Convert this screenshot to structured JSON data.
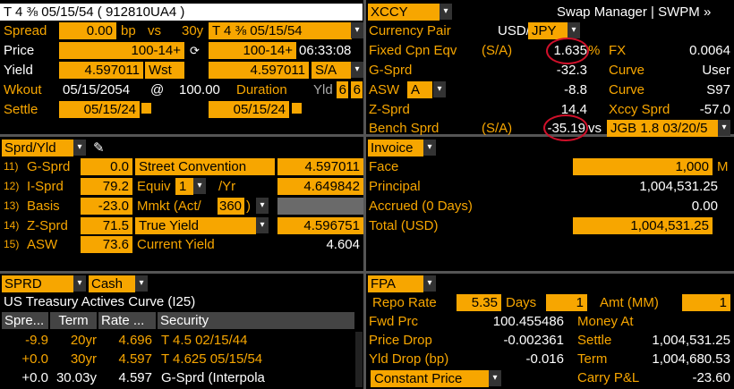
{
  "left_top": {
    "security_title": "T 4 ⅜ 05/15/54 ( 912810UA4 )",
    "spread_label": "Spread",
    "spread_value": "0.00",
    "spread_unit": "bp",
    "vs_label": "vs",
    "bench_tenor": "30y",
    "bench_security": "T 4 ⅜ 05/15/54",
    "price_label": "Price",
    "price_value": "100-14+",
    "price_value2": "100-14+",
    "price_time": "06:33:08",
    "yield_label": "Yield",
    "yield_value": "4.597011",
    "yield_type": "Wst",
    "yield_value2": "4.597011",
    "yield_freq": "S/A",
    "wkout_label": "Wkout",
    "wkout_date": "05/15/2054",
    "wkout_at": "@",
    "wkout_price": "100.00",
    "duration_label": "Duration",
    "yld_label": "Yld",
    "dur_a": "6",
    "dur_b": "6",
    "settle_label": "Settle",
    "settle_date": "05/15/24",
    "settle_date2": "05/15/24"
  },
  "right_top": {
    "xccy_label": "XCCY",
    "title": "Swap Manager | SWPM »",
    "pair_label": "Currency Pair",
    "pair_base": "USD/",
    "pair_quote": "JPY",
    "rows": [
      {
        "label": "Fixed Cpn Eqv",
        "freq": "(S/A)",
        "value": "1.635",
        "suffix": "%",
        "label2": "FX",
        "value2": "0.0064"
      },
      {
        "label": "G-Sprd",
        "freq": "",
        "value": "-32.3",
        "suffix": "",
        "label2": "Curve",
        "value2": "User"
      },
      {
        "label": "ASW",
        "freq": "",
        "value": "-8.8",
        "suffix": "",
        "label2": "Curve",
        "value2": "S97"
      },
      {
        "label": "Z-Sprd",
        "freq": "",
        "value": "14.4",
        "suffix": "",
        "label2": "Xccy Sprd",
        "value2": "-57.0"
      }
    ],
    "asw_select": "A",
    "bench_label": "Bench Sprd",
    "bench_freq": "(S/A)",
    "bench_value": "-35.19",
    "bench_vs": "vs",
    "bench_security": "JGB 1.8 03/20/5"
  },
  "sprd_yld": {
    "title": "Sprd/Yld",
    "rows": [
      {
        "num": "11)",
        "label": "G-Sprd",
        "value": "0.0"
      },
      {
        "num": "12)",
        "label": "I-Sprd",
        "value": "79.2"
      },
      {
        "num": "13)",
        "label": "Basis",
        "value": "-23.0"
      },
      {
        "num": "14)",
        "label": "Z-Sprd",
        "value": "71.5"
      },
      {
        "num": "15)",
        "label": "ASW",
        "value": "73.6"
      }
    ],
    "street_label": "Street Convention",
    "street_value": "4.597011",
    "equiv_label": "Equiv",
    "equiv_sel": "1",
    "equiv_unit": "/Yr",
    "equiv_value": "4.649842",
    "mmkt_label": "Mmkt (Act/",
    "mmkt_sel": "360",
    "mmkt_close": ")",
    "true_label": "True Yield",
    "true_value": "4.596751",
    "current_label": "Current Yield",
    "current_value": "4.604"
  },
  "invoice": {
    "title": "Invoice",
    "face_label": "Face",
    "face_value": "1,000",
    "face_unit": "M",
    "principal_label": "Principal",
    "principal_value": "1,004,531.25",
    "accrued_label": "Accrued (0 Days)",
    "accrued_value": "0.00",
    "total_label": "Total (USD)",
    "total_value": "1,004,531.25"
  },
  "curve": {
    "tab1": "SPRD",
    "tab2": "Cash",
    "title": "US Treasury Actives Curve (I25)",
    "headers": [
      "Spre...",
      "Term",
      "Rate ...",
      "Security"
    ],
    "rows": [
      {
        "spread": "-9.9",
        "term": "20yr",
        "rate": "4.696",
        "security": "T 4.5 02/15/44"
      },
      {
        "spread": "+0.0",
        "term": "30yr",
        "rate": "4.597",
        "security": "T 4.625 05/15/54"
      },
      {
        "spread": "+0.0",
        "term": "30.03y",
        "rate": "4.597",
        "security": "G-Sprd (Interpola"
      }
    ]
  },
  "fpa": {
    "title": "FPA",
    "repo_label": "Repo Rate",
    "repo_value": "5.35",
    "days_label": "Days",
    "days_value": "1",
    "amt_label": "Amt (MM)",
    "amt_value": "1",
    "fwd_label": "Fwd Prc",
    "fwd_value": "100.455486",
    "money_label": "Money At",
    "pdrop_label": "Price Drop",
    "pdrop_value": "-0.002361",
    "settle_label": "Settle",
    "settle_value": "1,004,531.25",
    "ydrop_label": "Yld Drop (bp)",
    "ydrop_value": "-0.016",
    "term_label": "Term",
    "term_value": "1,004,680.53",
    "const_label": "Constant Price",
    "carry_label": "Carry P&L",
    "carry_value": "-23.60"
  },
  "colors": {
    "accent": "#f7a600",
    "annotation": "#d0102a",
    "header_bg": "#ffffff"
  }
}
